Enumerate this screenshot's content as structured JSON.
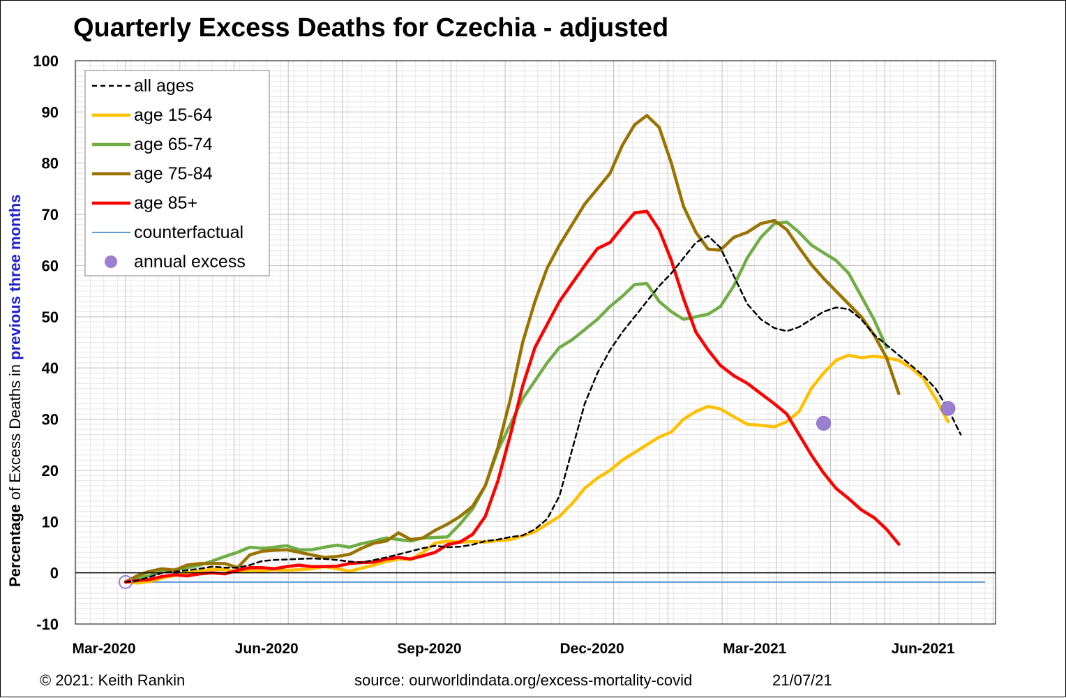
{
  "chart_data": {
    "type": "line",
    "title": "Quarterly Excess Deaths for Czechia - adjusted",
    "ylabel": {
      "part1": "Percentage",
      "part2": " of Excess Deaths in ",
      "part3": "previous three months"
    },
    "ylim": [
      -10,
      100
    ],
    "yticks": [
      -10,
      0,
      10,
      20,
      30,
      40,
      50,
      60,
      70,
      80,
      90,
      100
    ],
    "xticks": [
      "Mar-2020",
      "Jun-2020",
      "Sep-2020",
      "Dec-2020",
      "Mar-2021",
      "Jun-2021"
    ],
    "grid": true,
    "legend_position": "top-left",
    "x_start": "2020-03-01",
    "x_step_days": 7,
    "series": [
      {
        "name": "all ages",
        "color": "#000000",
        "style": "dashed",
        "values": [
          -1.8,
          -1.5,
          -0.8,
          0,
          0.2,
          0.5,
          0.8,
          1.2,
          1.0,
          1.0,
          1.5,
          2.3,
          2.5,
          2.6,
          2.7,
          2.8,
          2.7,
          2.5,
          2.2,
          2.0,
          2.5,
          3.0,
          3.6,
          4.2,
          4.8,
          5.3,
          5.0,
          5.1,
          5.5,
          6.2,
          6.5,
          7.0,
          7.3,
          8.5,
          10.5,
          15.0,
          24.0,
          33.0,
          39.0,
          43.5,
          47.0,
          50.0,
          53.0,
          56.0,
          58.5,
          61.5,
          64.5,
          65.8,
          63.5,
          58.0,
          52.5,
          49.5,
          47.8,
          47.2,
          48.0,
          49.5,
          51.0,
          51.8,
          51.5,
          49.5,
          46.5,
          44.5,
          42.5,
          40.5,
          38.5,
          36.0,
          32.0,
          27.0
        ]
      },
      {
        "name": "age 15-64",
        "color": "#ffc000",
        "style": "solid",
        "values": [
          -1.8,
          -2.0,
          -1.7,
          -1.0,
          -0.5,
          0,
          0.3,
          0.7,
          0.6,
          0.2,
          0.5,
          0.4,
          0.6,
          0.5,
          0.6,
          0.8,
          1.2,
          0.8,
          0.3,
          0.9,
          1.5,
          2.2,
          2.7,
          2.6,
          4.0,
          5.8,
          6.2,
          6.0,
          6.1,
          6.0,
          6.3,
          6.5,
          7.2,
          8.0,
          9.5,
          11.0,
          13.5,
          16.5,
          18.5,
          20.0,
          22.0,
          23.5,
          25.0,
          26.5,
          27.5,
          30.0,
          31.5,
          32.5,
          32.0,
          30.5,
          29.0,
          28.8,
          28.5,
          29.5,
          31.5,
          36.0,
          39.0,
          41.5,
          42.5,
          42.0,
          42.3,
          42.0,
          41.5,
          40.0,
          38.0,
          34.0,
          29.5
        ]
      },
      {
        "name": "age 65-74",
        "color": "#70ad47",
        "style": "solid",
        "values": [
          -1.8,
          -1.0,
          -0.5,
          0.2,
          0.6,
          1.0,
          1.5,
          2.3,
          3.2,
          4.0,
          5.0,
          4.8,
          5.0,
          5.3,
          4.5,
          4.5,
          5.0,
          5.4,
          5.0,
          5.7,
          6.2,
          6.8,
          6.5,
          6.2,
          6.8,
          6.9,
          7.0,
          9.5,
          12.5,
          17.0,
          24.0,
          29.0,
          34.0,
          37.5,
          41.0,
          44.0,
          45.5,
          47.5,
          49.5,
          52.0,
          54.0,
          56.3,
          56.5,
          53.0,
          51.0,
          49.5,
          50.0,
          50.5,
          52.0,
          56.0,
          61.5,
          65.5,
          68.2,
          68.5,
          66.5,
          64.0,
          62.5,
          61.0,
          58.5,
          54.0,
          49.5,
          44.0
        ]
      },
      {
        "name": "age 75-84",
        "color": "#997300",
        "style": "solid",
        "values": [
          -1.8,
          -0.5,
          0.3,
          0.8,
          0.5,
          1.5,
          1.8,
          1.8,
          1.8,
          1.0,
          3.5,
          4.2,
          4.4,
          4.5,
          4.0,
          3.5,
          3.0,
          3.2,
          3.6,
          4.8,
          5.8,
          6.2,
          7.8,
          6.5,
          6.8,
          8.3,
          9.5,
          11.0,
          13.0,
          17.0,
          24.5,
          34.0,
          45.0,
          53.0,
          59.5,
          64.0,
          68.0,
          72.0,
          75.0,
          78.0,
          83.5,
          87.5,
          89.3,
          87.0,
          80.0,
          71.5,
          66.5,
          63.2,
          63.0,
          65.5,
          66.5,
          68.2,
          68.8,
          67.0,
          63.5,
          60.2,
          57.5,
          55.0,
          52.5,
          50.0,
          46.5,
          42.0,
          35.0
        ]
      },
      {
        "name": "age 85+",
        "color": "#ff0000",
        "style": "solid",
        "values": [
          -1.8,
          -1.5,
          -1.3,
          -0.7,
          -0.4,
          -0.6,
          -0.2,
          0,
          -0.2,
          0.5,
          1.0,
          1.0,
          0.8,
          1.2,
          1.5,
          1.2,
          1.2,
          1.3,
          1.8,
          2.0,
          2.1,
          2.7,
          3.0,
          2.7,
          3.3,
          4.0,
          5.5,
          6.0,
          7.5,
          11.0,
          18.0,
          27.0,
          36.5,
          44.0,
          48.5,
          53.0,
          56.5,
          60.0,
          63.3,
          64.5,
          67.5,
          70.3,
          70.6,
          67.0,
          61.0,
          53.5,
          47.0,
          43.5,
          40.5,
          38.5,
          37.0,
          35.0,
          33.0,
          31.0,
          27.0,
          23.0,
          19.5,
          16.5,
          14.5,
          12.3,
          10.8,
          8.5,
          5.6
        ]
      },
      {
        "name": "counterfactual",
        "color": "#5b9bd5",
        "style": "flat",
        "values": [
          -1.8,
          -1.8
        ]
      }
    ],
    "annual_excess": {
      "name": "annual excess",
      "color": "#9b7fd0",
      "points": [
        {
          "week_index": 0,
          "value": -1.8
        },
        {
          "week_index": 56,
          "value": 29.2
        },
        {
          "week_index": 66,
          "value": 32.1
        }
      ]
    }
  },
  "footer": {
    "copyright": "© 2021: Keith Rankin",
    "source": "source: ourworldindata.org/excess-mortality-covid",
    "date": "21/07/21"
  }
}
